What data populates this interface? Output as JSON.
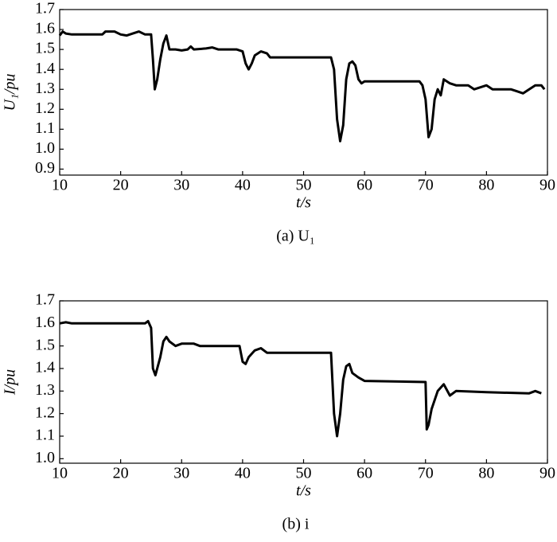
{
  "chart_data": [
    {
      "type": "line",
      "ylabel": "U₁/pu",
      "xlabel": "t/s",
      "caption": "(a) U₁",
      "xlim": [
        10,
        90
      ],
      "xticks": [
        10,
        20,
        30,
        40,
        50,
        60,
        70,
        80,
        90
      ],
      "ylim": [
        0.87,
        1.7
      ],
      "yticks": [
        0.9,
        {
          "value": 1,
          "label": "1.0"
        },
        1.1,
        1.2,
        1.3,
        1.4,
        1.5,
        1.6,
        1.7
      ],
      "series": [
        {
          "color": "#000000",
          "x": [
            10,
            10.5,
            11,
            12,
            17,
            17.5,
            19,
            20,
            21,
            22,
            23,
            24,
            25,
            25.3,
            25.6,
            26,
            26.5,
            27,
            27.5,
            28,
            29,
            30,
            31,
            31.5,
            32,
            34,
            35,
            36,
            39,
            40,
            40.5,
            41,
            41.5,
            42,
            43,
            44,
            44.5,
            54.5,
            55,
            55.5,
            56,
            56.5,
            57,
            57.5,
            58,
            58.5,
            59,
            59.5,
            60,
            69,
            69.5,
            70,
            70.5,
            71,
            71.5,
            72,
            72.5,
            73,
            74,
            75,
            77,
            78,
            80,
            81,
            84,
            85,
            86,
            87,
            88,
            89,
            89.5
          ],
          "values": [
            1.57,
            1.59,
            1.58,
            1.575,
            1.575,
            1.59,
            1.59,
            1.575,
            1.57,
            1.58,
            1.59,
            1.575,
            1.575,
            1.45,
            1.3,
            1.35,
            1.45,
            1.53,
            1.57,
            1.5,
            1.5,
            1.495,
            1.5,
            1.515,
            1.5,
            1.505,
            1.51,
            1.5,
            1.5,
            1.49,
            1.43,
            1.4,
            1.43,
            1.47,
            1.49,
            1.48,
            1.46,
            1.46,
            1.4,
            1.15,
            1.04,
            1.12,
            1.35,
            1.43,
            1.44,
            1.42,
            1.35,
            1.33,
            1.34,
            1.34,
            1.32,
            1.25,
            1.06,
            1.1,
            1.25,
            1.3,
            1.27,
            1.35,
            1.33,
            1.32,
            1.32,
            1.3,
            1.32,
            1.3,
            1.3,
            1.29,
            1.28,
            1.3,
            1.32,
            1.32,
            1.3
          ]
        }
      ]
    },
    {
      "type": "line",
      "ylabel": "I/pu",
      "xlabel": "t/s",
      "caption": "(b) i",
      "xlim": [
        10,
        90
      ],
      "xticks": [
        10,
        20,
        30,
        40,
        50,
        60,
        70,
        80,
        90
      ],
      "ylim": [
        0.98,
        1.7
      ],
      "yticks": [
        {
          "value": 1,
          "label": "1.0"
        },
        1.1,
        1.2,
        1.3,
        1.4,
        1.5,
        1.6,
        1.7
      ],
      "series": [
        {
          "color": "#000000",
          "x": [
            10,
            11,
            12,
            24,
            24.5,
            25,
            25.3,
            25.7,
            26.5,
            27,
            27.5,
            28,
            29,
            30,
            32,
            33,
            39.5,
            40,
            40.5,
            41,
            42,
            43,
            44,
            54.5,
            55,
            55.5,
            56,
            56.5,
            57,
            57.5,
            58,
            59,
            60,
            70,
            70.2,
            70.5,
            71,
            72,
            73,
            74,
            75,
            80,
            87,
            88,
            89
          ],
          "values": [
            1.6,
            1.605,
            1.6,
            1.6,
            1.61,
            1.58,
            1.4,
            1.37,
            1.45,
            1.52,
            1.54,
            1.52,
            1.5,
            1.51,
            1.51,
            1.5,
            1.5,
            1.43,
            1.42,
            1.45,
            1.48,
            1.49,
            1.47,
            1.47,
            1.2,
            1.1,
            1.2,
            1.35,
            1.41,
            1.42,
            1.38,
            1.36,
            1.345,
            1.34,
            1.13,
            1.15,
            1.22,
            1.3,
            1.33,
            1.28,
            1.3,
            1.295,
            1.29,
            1.3,
            1.29
          ]
        }
      ]
    }
  ]
}
